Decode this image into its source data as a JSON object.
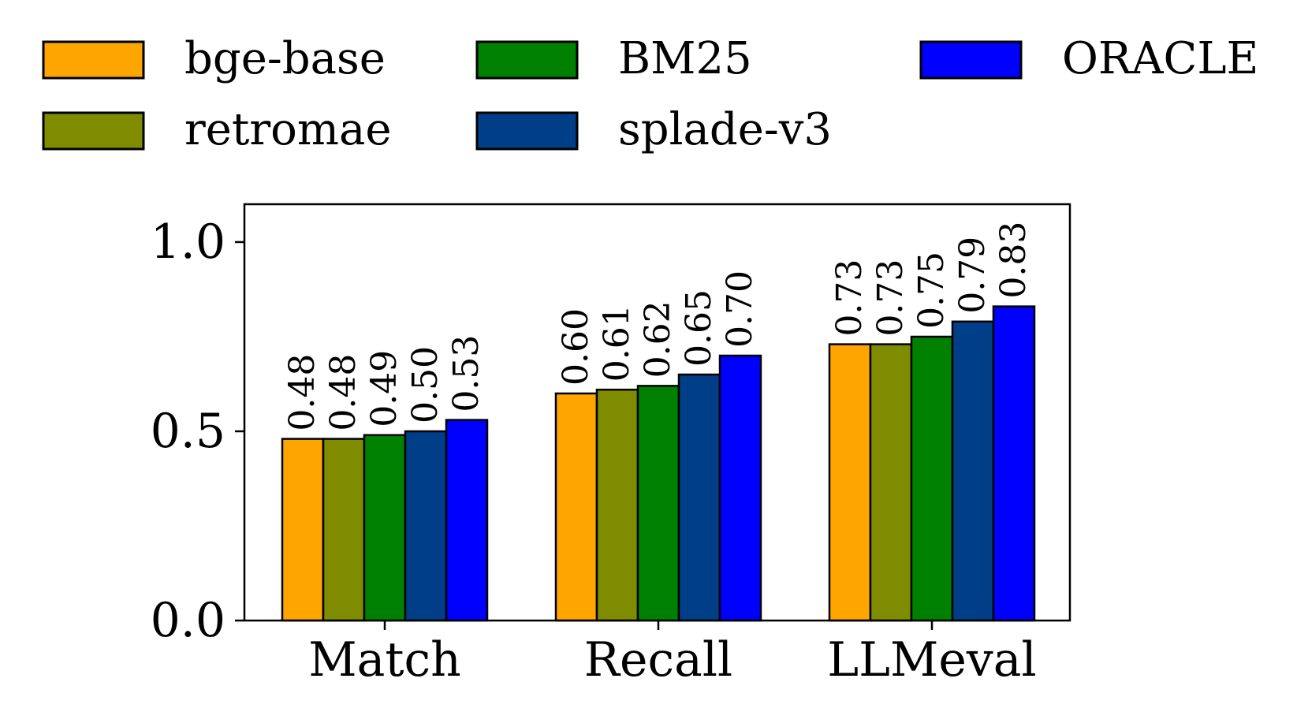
{
  "chart_data": {
    "type": "bar",
    "title": "",
    "xlabel": "",
    "ylabel": "",
    "categories": [
      "Match",
      "Recall",
      "LLMeval"
    ],
    "ylim": [
      0,
      1.1
    ],
    "yticks": [
      0.0,
      0.5,
      1.0
    ],
    "ytick_labels": [
      "0.0",
      "0.5",
      "1.0"
    ],
    "grid": false,
    "legend_position": "top",
    "series": [
      {
        "name": "bge-base",
        "color": "#FFA500",
        "values": [
          0.48,
          0.6,
          0.73
        ],
        "labels": [
          "0.48",
          "0.60",
          "0.73"
        ]
      },
      {
        "name": "retromae",
        "color": "#808C00",
        "values": [
          0.48,
          0.61,
          0.73
        ],
        "labels": [
          "0.48",
          "0.61",
          "0.73"
        ]
      },
      {
        "name": "BM25",
        "color": "#008000",
        "values": [
          0.49,
          0.62,
          0.75
        ],
        "labels": [
          "0.49",
          "0.62",
          "0.75"
        ]
      },
      {
        "name": "splade-v3",
        "color": "#003F88",
        "values": [
          0.5,
          0.65,
          0.79
        ],
        "labels": [
          "0.50",
          "0.65",
          "0.79"
        ]
      },
      {
        "name": "ORACLE",
        "color": "#0000FF",
        "values": [
          0.53,
          0.7,
          0.83
        ],
        "labels": [
          "0.53",
          "0.70",
          "0.83"
        ]
      }
    ]
  }
}
